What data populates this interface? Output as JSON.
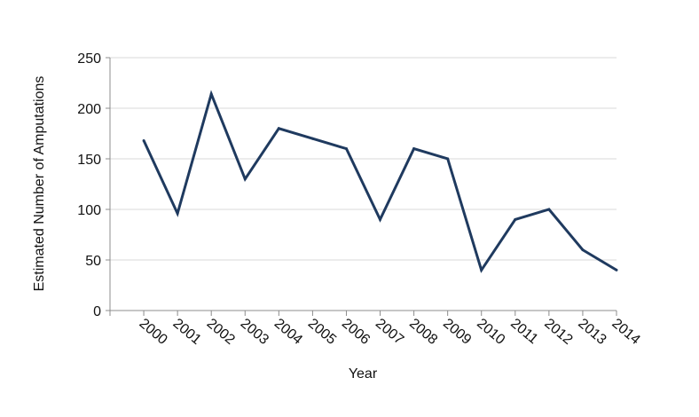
{
  "chart_data": {
    "type": "line",
    "xlabel": "Year",
    "ylabel": "Estimated Number of Amputations",
    "ylim": [
      0,
      250
    ],
    "yticks": [
      0,
      50,
      100,
      150,
      200,
      250
    ],
    "grid": true,
    "categories": [
      "2000",
      "2001",
      "2002",
      "2003",
      "2004",
      "2005",
      "2006",
      "2007",
      "2008",
      "2009",
      "2010",
      "2011",
      "2012",
      "2013",
      "2014"
    ],
    "series": [
      {
        "values": [
          168,
          96,
          214,
          130,
          180,
          170,
          160,
          90,
          160,
          150,
          40,
          90,
          100,
          60,
          40
        ]
      }
    ],
    "colors": {
      "line": "#1f3a5f",
      "grid": "#d9d9d9",
      "axis": "#8c8c8c"
    }
  }
}
